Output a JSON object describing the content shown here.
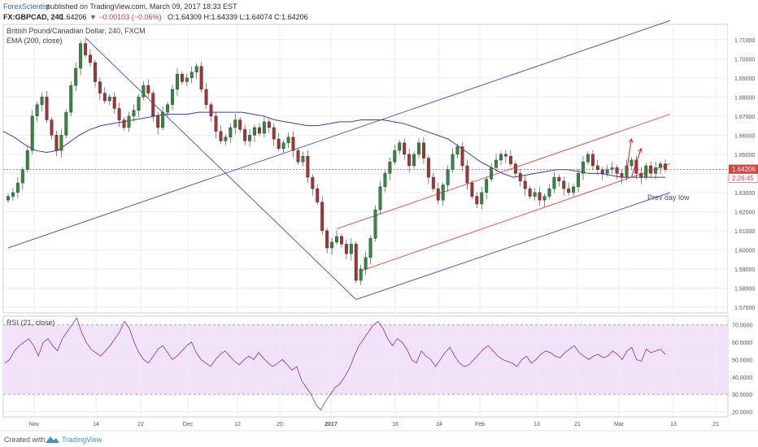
{
  "header": {
    "publisher": "ForexScientist",
    "published_text": "published on TradingView.com, March 09, 2017 18:33 EST",
    "symbol_line": "FX:GBPCAD, 240",
    "last_value": "1.64206",
    "change_text": "▼ −0.00103 (−0.06%)",
    "ohlc_text": "O:1.64309 H:1.64339 L:1.64074 C:1.64206"
  },
  "footer": {
    "created_with": "Created with",
    "brand": "TradingView"
  },
  "colors": {
    "candle_up": "#2f8a3e",
    "candle_down": "#a83232",
    "ema": "#3b3bb8",
    "channel_blue": "#4545c8",
    "channel_red": "#e0403a",
    "rsi_line": "#9b3fa8",
    "rsi_band": "#f2e2f8",
    "grid": "#e9edf2",
    "price_tag": "#d64545"
  },
  "chart_data": [
    {
      "type": "candlestick",
      "title": "British Pound/Canadian Dollar, 240, FXCM",
      "indicator": "EMA (200, close)",
      "y_ticks": [
        "1.57000",
        "1.58000",
        "1.59000",
        "1.60000",
        "1.61000",
        "1.62000",
        "1.63000",
        "1.64000",
        "1.65000",
        "1.66000",
        "1.67000",
        "1.68000",
        "1.69000",
        "1.70000",
        "1.71000"
      ],
      "ylim": [
        1.567,
        1.718
      ],
      "x_ticks": [
        "Nov",
        "14",
        "22",
        "Dec",
        "12",
        "20",
        "2017",
        "16",
        "24",
        "Feb",
        "13",
        "21",
        "Mar",
        "13",
        "21"
      ],
      "last_price_label": "1.64206",
      "countdown_label": "2:26:45",
      "annotation": "Prev day low",
      "closes": [
        1.628,
        1.63,
        1.635,
        1.642,
        1.652,
        1.67,
        1.676,
        1.68,
        1.668,
        1.66,
        1.652,
        1.66,
        1.672,
        1.686,
        1.695,
        1.708,
        1.702,
        1.698,
        1.688,
        1.682,
        1.678,
        1.68,
        1.674,
        1.668,
        1.664,
        1.67,
        1.673,
        1.68,
        1.686,
        1.682,
        1.67,
        1.664,
        1.672,
        1.676,
        1.684,
        1.692,
        1.688,
        1.69,
        1.693,
        1.696,
        1.684,
        1.676,
        1.67,
        1.662,
        1.657,
        1.659,
        1.664,
        1.668,
        1.663,
        1.657,
        1.66,
        1.664,
        1.661,
        1.667,
        1.664,
        1.658,
        1.653,
        1.656,
        1.659,
        1.652,
        1.646,
        1.649,
        1.638,
        1.632,
        1.625,
        1.61,
        1.601,
        1.604,
        1.607,
        1.603,
        1.598,
        1.603,
        1.584,
        1.59,
        1.596,
        1.606,
        1.621,
        1.633,
        1.64,
        1.646,
        1.652,
        1.656,
        1.65,
        1.644,
        1.65,
        1.656,
        1.648,
        1.638,
        1.632,
        1.626,
        1.634,
        1.642,
        1.65,
        1.654,
        1.644,
        1.635,
        1.628,
        1.624,
        1.63,
        1.637,
        1.643,
        1.647,
        1.65,
        1.649,
        1.645,
        1.64,
        1.636,
        1.632,
        1.628,
        1.63,
        1.626,
        1.628,
        1.632,
        1.638,
        1.636,
        1.632,
        1.63,
        1.633,
        1.64,
        1.646,
        1.65,
        1.644,
        1.642,
        1.64,
        1.642,
        1.643,
        1.64,
        1.638,
        1.644,
        1.647,
        1.64,
        1.638,
        1.644,
        1.64,
        1.643,
        1.645,
        1.642
      ],
      "ema_values": [
        1.662,
        1.659,
        1.655,
        1.652,
        1.651,
        1.652,
        1.656,
        1.66,
        1.663,
        1.665,
        1.666,
        1.667,
        1.668,
        1.669,
        1.67,
        1.671,
        1.671,
        1.671,
        1.672,
        1.672,
        1.672,
        1.672,
        1.672,
        1.671,
        1.67,
        1.668,
        1.667,
        1.666,
        1.665,
        1.665,
        1.666,
        1.667,
        1.667,
        1.668,
        1.668,
        1.668,
        1.667,
        1.666,
        1.664,
        1.662,
        1.66,
        1.658,
        1.654,
        1.65,
        1.646,
        1.643,
        1.64,
        1.638,
        1.639,
        1.64,
        1.641,
        1.642,
        1.642,
        1.641,
        1.64,
        1.64,
        1.639,
        1.638,
        1.638,
        1.638,
        1.638,
        1.638
      ],
      "channels": [
        {
          "kind": "blue",
          "points": [
            [
              0,
              1.601
            ],
            [
              137,
              1.72
            ]
          ]
        },
        {
          "kind": "blue",
          "points": [
            [
              16,
              1.711
            ],
            [
              72,
              1.574
            ]
          ]
        },
        {
          "kind": "blue",
          "points": [
            [
              72,
              1.574
            ],
            [
              137,
              1.63
            ]
          ]
        },
        {
          "kind": "red",
          "points": [
            [
              68,
              1.611
            ],
            [
              137,
              1.671
            ]
          ]
        },
        {
          "kind": "red",
          "points": [
            [
              73,
              1.589
            ],
            [
              137,
              1.645
            ]
          ]
        }
      ],
      "arrows": [
        {
          "from": [
            128,
            1.641
          ],
          "to": [
            129,
            1.658
          ]
        },
        {
          "from": [
            129,
            1.638
          ],
          "to": [
            131,
            1.653
          ]
        }
      ]
    },
    {
      "type": "line",
      "title": "RSI (21, close)",
      "y_ticks": [
        "20.0000",
        "30.0000",
        "40.0000",
        "50.0000",
        "60.0000",
        "70.0000"
      ],
      "ylim": [
        17,
        75
      ],
      "band": [
        30,
        70
      ],
      "values": [
        48,
        50,
        55,
        58,
        60,
        62,
        58,
        52,
        60,
        62,
        58,
        55,
        62,
        66,
        70,
        74,
        66,
        60,
        56,
        54,
        52,
        55,
        58,
        62,
        66,
        72,
        68,
        60,
        54,
        50,
        48,
        52,
        56,
        58,
        54,
        50,
        52,
        55,
        58,
        60,
        54,
        50,
        48,
        46,
        50,
        53,
        55,
        52,
        49,
        47,
        50,
        52,
        50,
        54,
        51,
        48,
        46,
        48,
        50,
        47,
        44,
        46,
        38,
        34,
        30,
        24,
        21,
        26,
        30,
        34,
        36,
        40,
        45,
        52,
        58,
        62,
        66,
        70,
        72,
        68,
        62,
        58,
        62,
        60,
        56,
        50,
        48,
        55,
        52,
        50,
        46,
        50,
        54,
        57,
        52,
        48,
        46,
        47,
        50,
        53,
        56,
        58,
        55,
        52,
        50,
        49,
        48,
        46,
        50,
        52,
        48,
        50,
        53,
        55,
        54,
        52,
        51,
        54,
        56,
        58,
        54,
        52,
        50,
        52,
        53,
        51,
        52,
        55,
        53,
        50,
        55,
        57,
        50,
        49,
        56,
        54,
        55,
        56,
        53
      ]
    }
  ]
}
